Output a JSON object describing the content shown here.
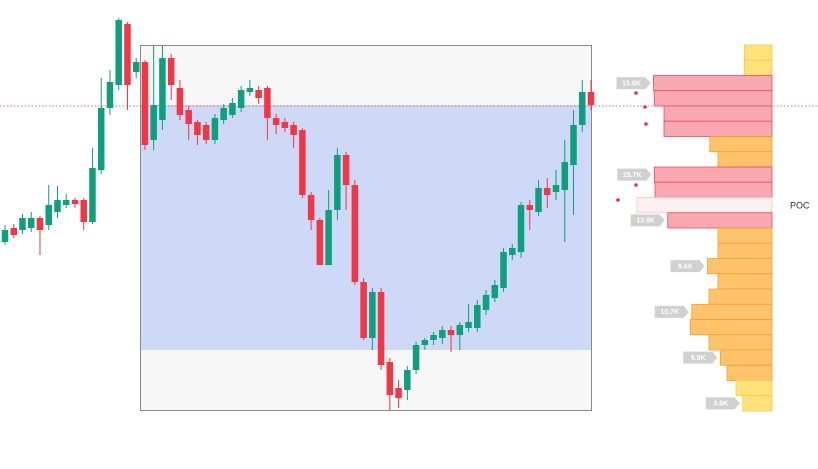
{
  "chart_data": {
    "type": "candlestick",
    "ylim": [
      0,
      470
    ],
    "up_color": "#0e9f7e",
    "down_color": "#f23645",
    "open": [
      228,
      242,
      240,
      242,
      252,
      245,
      258,
      265,
      270,
      270,
      248,
      300,
      362,
      385,
      446,
      398,
      408,
      330,
      350,
      412,
      382,
      360,
      348,
      345,
      330,
      350,
      355,
      362,
      378,
      380,
      382,
      352,
      348,
      345,
      340,
      275,
      250,
      205,
      260,
      315,
      285,
      188,
      132,
      178,
      108,
      82,
      80,
      100,
      125,
      130,
      132,
      140,
      135,
      142,
      142,
      160,
      172,
      182,
      215,
      218,
      265,
      258,
      282,
      278,
      280,
      305,
      345,
      378
    ],
    "high": [
      245,
      246,
      256,
      258,
      254,
      285,
      284,
      276,
      272,
      272,
      322,
      392,
      400,
      452,
      448,
      412,
      410,
      425,
      424,
      416,
      390,
      364,
      350,
      348,
      356,
      366,
      372,
      384,
      390,
      384,
      384,
      356,
      352,
      348,
      342,
      278,
      252,
      280,
      322,
      318,
      290,
      192,
      182,
      182,
      112,
      90,
      104,
      128,
      132,
      138,
      144,
      144,
      148,
      166,
      170,
      180,
      190,
      222,
      226,
      268,
      270,
      290,
      292,
      300,
      330,
      360,
      390,
      390
    ],
    "low": [
      225,
      232,
      236,
      238,
      215,
      240,
      252,
      262,
      262,
      240,
      246,
      296,
      355,
      380,
      360,
      392,
      320,
      320,
      340,
      370,
      350,
      330,
      325,
      326,
      326,
      346,
      352,
      358,
      374,
      366,
      330,
      336,
      338,
      322,
      272,
      240,
      205,
      205,
      250,
      260,
      185,
      130,
      120,
      100,
      60,
      62,
      70,
      96,
      120,
      125,
      126,
      118,
      120,
      138,
      138,
      155,
      168,
      178,
      210,
      212,
      240,
      254,
      262,
      270,
      228,
      255,
      338,
      360
    ],
    "close": [
      240,
      235,
      252,
      252,
      240,
      265,
      270,
      270,
      266,
      248,
      302,
      362,
      388,
      450,
      385,
      408,
      325,
      365,
      412,
      385,
      355,
      346,
      335,
      330,
      352,
      362,
      367,
      380,
      382,
      372,
      352,
      345,
      342,
      335,
      275,
      250,
      205,
      260,
      315,
      285,
      188,
      132,
      178,
      105,
      75,
      72,
      100,
      125,
      130,
      135,
      140,
      135,
      145,
      148,
      165,
      175,
      185,
      218,
      222,
      265,
      260,
      282,
      275,
      285,
      308,
      345,
      378,
      365
    ],
    "volume_profile": {
      "type": "bar",
      "orientation": "horizontal",
      "xlim": [
        0,
        18
      ],
      "values": [
        3.7,
        3.7,
        15.8,
        15.7,
        14.4,
        14.4,
        8.3,
        7.2,
        15.7,
        15.6,
        18,
        13.9,
        7.2,
        7.2,
        8.6,
        7.2,
        8.4,
        10.7,
        10.9,
        8.4,
        6.9,
        6,
        4.8,
        3.9
      ],
      "value_labels": [
        null,
        null,
        "15.8K",
        null,
        null,
        null,
        null,
        null,
        "15.7K",
        null,
        null,
        "13.9K",
        null,
        null,
        "8.6K",
        null,
        null,
        "10.7K",
        null,
        null,
        "6.9K",
        null,
        null,
        "3.9K"
      ],
      "colors": [
        "#ffe27a",
        "#ffe27a",
        "#f9a8b0",
        "#f9a8b0",
        "#f9a8b0",
        "#f9a8b0",
        "#ffc46b",
        "#ffc46b",
        "#f9a8b0",
        "#f9a8b0",
        "#fdeef0",
        "#f9a8b0",
        "#ffc46b",
        "#ffc46b",
        "#ffc46b",
        "#ffc46b",
        "#ffc46b",
        "#ffc46b",
        "#ffc46b",
        "#ffc46b",
        "#ffc46b",
        "#ffc46b",
        "#ffe27a",
        "#ffe27a"
      ],
      "poc_label": "POC"
    }
  }
}
